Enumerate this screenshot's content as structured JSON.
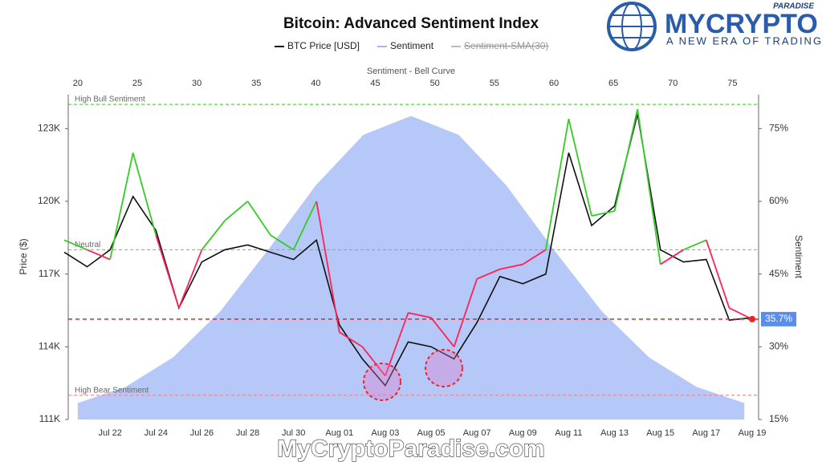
{
  "chart_data": {
    "type": "line",
    "title": "Bitcoin: Advanced Sentiment Index",
    "brand": {
      "name": "MYCRYPTO",
      "tag": "PARADISE",
      "slogan": "A NEW ERA OF TRADING",
      "watermark": "MyCryptoParadise.com"
    },
    "y_label": "Price ($)",
    "y2_label": "Sentiment",
    "top_axis": {
      "label": "Sentiment - Bell Curve",
      "xlim": [
        19.2,
        77.2
      ],
      "xticks": [
        20,
        25,
        30,
        35,
        40,
        45,
        50,
        55,
        60,
        65,
        70,
        75
      ]
    },
    "categories": [
      null,
      null,
      "Jul 22",
      null,
      "Jul 24",
      null,
      "Jul 26",
      null,
      "Jul 28",
      null,
      "Jul 30",
      null,
      "Aug 01",
      null,
      "Aug 03",
      null,
      "Aug 05",
      null,
      "Aug 07",
      null,
      "Aug 09",
      null,
      "Aug 11",
      null,
      "Aug 13",
      null,
      "Aug 15",
      null,
      "Aug 17",
      null,
      "Aug 19"
    ],
    "ylim": [
      111000,
      124400
    ],
    "yticks": [
      {
        "value": 111000,
        "label": "111K"
      },
      {
        "value": 114000,
        "label": "114K"
      },
      {
        "value": 117000,
        "label": "117K"
      },
      {
        "value": 120000,
        "label": "120K"
      },
      {
        "value": 123000,
        "label": "123K"
      }
    ],
    "y2lim": [
      15,
      82
    ],
    "y2ticks": [
      {
        "value": 15,
        "label": "15%"
      },
      {
        "value": 30,
        "label": "30%"
      },
      {
        "value": 45,
        "label": "45%"
      },
      {
        "value": 60,
        "label": "60%"
      },
      {
        "value": 75,
        "label": "75%"
      }
    ],
    "series": [
      {
        "name": "BTC Price [USD]",
        "color": "#111111",
        "values": [
          117900,
          117300,
          118000,
          120200,
          118800,
          115600,
          117500,
          118000,
          118200,
          117900,
          117600,
          118400,
          114900,
          113500,
          112400,
          114200,
          114000,
          113500,
          115000,
          116900,
          116600,
          117000,
          122000,
          119000,
          119800,
          123600,
          118000,
          117500,
          117600,
          115100,
          115200
        ]
      },
      {
        "name": "Sentiment",
        "color": "#9db8fb",
        "axis": "y2",
        "above_color": "#33cc22",
        "below_color": "#ff2255",
        "values": [
          52,
          50,
          48,
          70,
          53,
          38,
          50,
          56,
          60,
          53,
          50,
          60,
          33,
          30,
          24,
          37,
          36,
          30,
          44,
          46,
          47,
          50,
          77,
          57,
          58,
          79,
          47,
          50,
          52,
          38,
          35.7
        ]
      },
      {
        "name": "Sentiment-SMA(30)",
        "color": "#bbbbbb",
        "visible": false
      }
    ],
    "bell_curve": {
      "color": "#b6c8f8",
      "x": [
        20,
        24,
        28,
        32,
        36,
        40,
        44,
        48,
        52,
        56,
        60,
        64,
        68,
        72,
        76
      ],
      "values": [
        18.4,
        21.7,
        27.8,
        37.4,
        50.0,
        63.3,
        73.7,
        77.6,
        73.7,
        63.3,
        50.0,
        37.4,
        27.8,
        21.7,
        18.4
      ]
    },
    "reference_lines": [
      {
        "label": "High Bull Sentiment",
        "value": 80,
        "color": "#33cc22"
      },
      {
        "label": "Neutral",
        "value": 50,
        "color": "#999999"
      },
      {
        "label": "High Bear Sentiment",
        "value": 20,
        "color": "#ff7777"
      }
    ],
    "current": {
      "value": 35.7,
      "label": "35.7%",
      "color": "#ee2222",
      "badge_color": "#5b8def"
    }
  }
}
